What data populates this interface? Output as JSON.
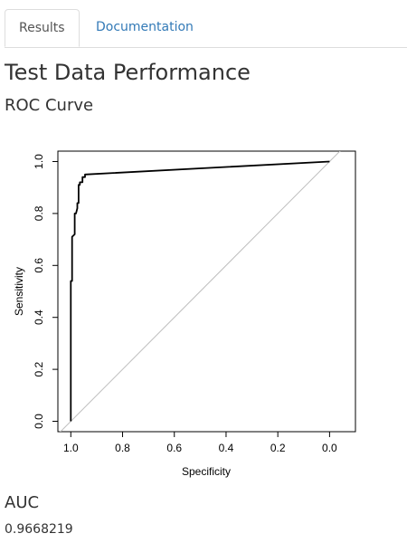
{
  "tabs": [
    {
      "label": "Results",
      "active": true
    },
    {
      "label": "Documentation",
      "active": false
    }
  ],
  "page_title": "Test Data Performance",
  "section_title": "ROC Curve",
  "auc": {
    "title": "AUC",
    "value": "0.9668219"
  },
  "chart_data": {
    "type": "line",
    "title": "",
    "xlabel": "Specificity",
    "ylabel": "Sensitivity",
    "xlim": [
      1.05,
      -0.1
    ],
    "ylim": [
      -0.04,
      1.04
    ],
    "x_reversed": true,
    "xticks": [
      1.0,
      0.8,
      0.6,
      0.4,
      0.2,
      0.0
    ],
    "xtick_labels": [
      "1.0",
      "0.8",
      "0.6",
      "0.4",
      "0.2",
      "0.0"
    ],
    "yticks": [
      0.0,
      0.2,
      0.4,
      0.6,
      0.8,
      1.0
    ],
    "ytick_labels": [
      "0.0",
      "0.2",
      "0.4",
      "0.6",
      "0.8",
      "1.0"
    ],
    "grid": false,
    "series": [
      {
        "color": "#000000",
        "x": [
          1.0,
          1.0,
          0.995,
          0.995,
          0.985,
          0.985,
          0.98,
          0.975,
          0.975,
          0.97,
          0.97,
          0.965,
          0.965,
          0.955,
          0.955,
          0.945,
          0.945,
          0.0
        ],
        "y": [
          0.0,
          0.54,
          0.54,
          0.71,
          0.72,
          0.8,
          0.8,
          0.82,
          0.84,
          0.84,
          0.91,
          0.91,
          0.92,
          0.92,
          0.94,
          0.94,
          0.95,
          1.0
        ]
      }
    ],
    "reference_line": {
      "color": "#bebebe",
      "x": [
        1.05,
        -0.1
      ],
      "y": [
        -0.05,
        1.1
      ]
    }
  }
}
